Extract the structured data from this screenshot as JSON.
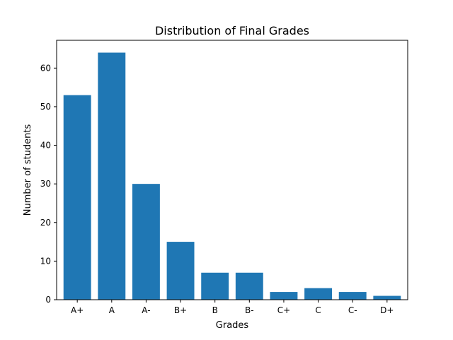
{
  "chart_data": {
    "type": "bar",
    "title": "Distribution of Final Grades",
    "xlabel": "Grades",
    "ylabel": "Number of students",
    "categories": [
      "A+",
      "A",
      "A-",
      "B+",
      "B",
      "B-",
      "C+",
      "C",
      "C-",
      "D+"
    ],
    "values": [
      53,
      64,
      30,
      15,
      7,
      7,
      2,
      3,
      2,
      1
    ],
    "ylim": [
      0,
      67.2
    ],
    "yticks": [
      "0",
      "10",
      "20",
      "30",
      "40",
      "50",
      "60"
    ],
    "grid": false,
    "bar_color": "#1f77b4"
  }
}
